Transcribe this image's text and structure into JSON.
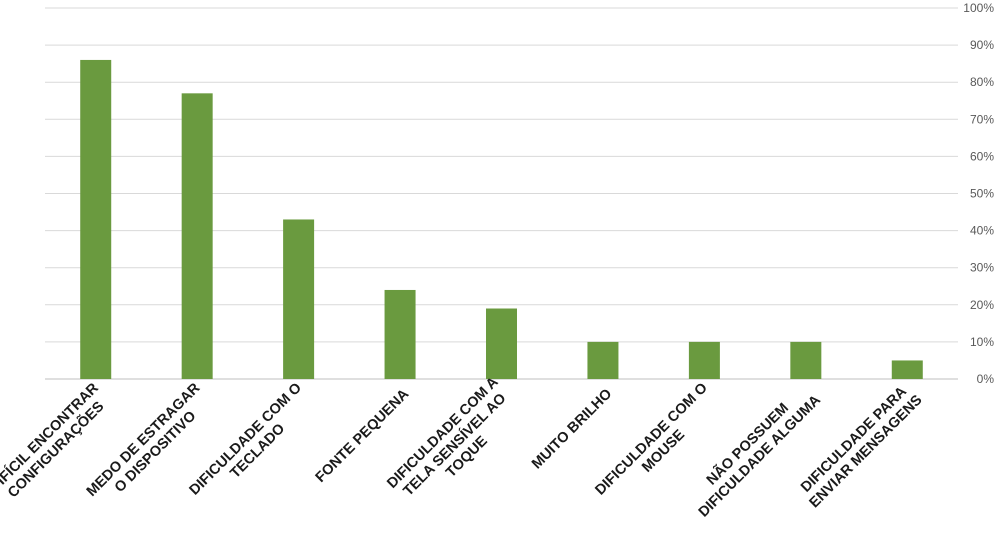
{
  "chart_data": {
    "type": "bar",
    "title": "",
    "xlabel": "",
    "ylabel": "",
    "ylim": [
      0,
      100
    ],
    "y_ticks": [
      "0%",
      "10%",
      "20%",
      "30%",
      "40%",
      "50%",
      "60%",
      "70%",
      "80%",
      "90%",
      "100%"
    ],
    "y_axis_side": "right",
    "grid": true,
    "legend": "none",
    "bar_color": "#6a9a3f",
    "grid_color": "#d9d9d9",
    "categories": [
      [
        "DIFÍCIL ENCONTRAR",
        "CONFIGURAÇÕES"
      ],
      [
        "MEDO DE ESTRAGAR",
        "O DISPOSITIVO"
      ],
      [
        "DIFICULDADE COM O",
        "TECLADO"
      ],
      [
        "FONTE PEQUENA"
      ],
      [
        "DIFICULDADE COM A",
        "TELA SENSÍVEL AO",
        "TOQUE"
      ],
      [
        "MUITO BRILHO"
      ],
      [
        "DIFICULDADE COM O",
        "MOUSE"
      ],
      [
        "NÃO POSSUEM",
        "DIFICULDADE ALGUMA"
      ],
      [
        "DIFICULDADE PARA",
        "ENVIAR MENSAGENS"
      ]
    ],
    "values": [
      86,
      77,
      43,
      24,
      19,
      10,
      10,
      10,
      5
    ]
  }
}
